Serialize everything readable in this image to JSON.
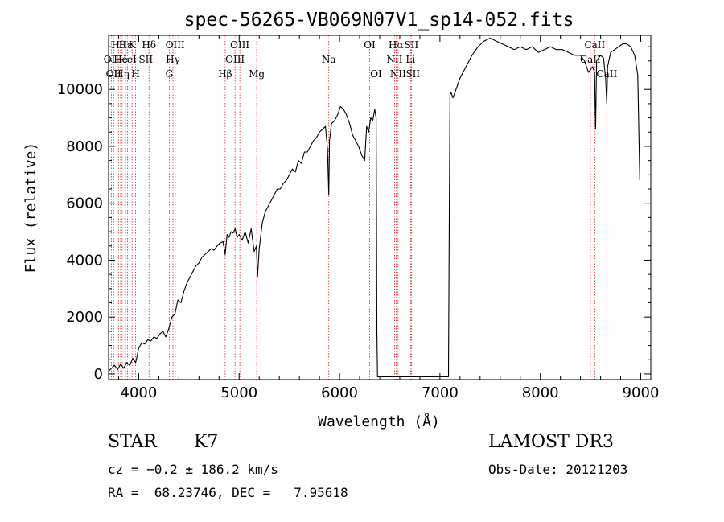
{
  "chart_data": {
    "type": "line",
    "title": "spec-56265-VB069N07V1_sp14-052.fits",
    "xlabel": "Wavelength (Å)",
    "ylabel": "Flux (relative)",
    "xlim": [
      3700,
      9100
    ],
    "ylim": [
      -200,
      11900
    ],
    "x_ticks": [
      4000,
      5000,
      6000,
      7000,
      8000,
      9000
    ],
    "y_ticks": [
      0,
      2000,
      4000,
      6000,
      8000,
      10000
    ],
    "series": [
      {
        "name": "flux",
        "x": [
          3700,
          3730,
          3760,
          3790,
          3820,
          3850,
          3880,
          3910,
          3940,
          3970,
          4000,
          4030,
          4060,
          4090,
          4120,
          4150,
          4180,
          4210,
          4240,
          4270,
          4300,
          4330,
          4360,
          4390,
          4420,
          4450,
          4480,
          4510,
          4540,
          4570,
          4600,
          4630,
          4660,
          4690,
          4720,
          4750,
          4780,
          4810,
          4840,
          4861,
          4880,
          4900,
          4920,
          4940,
          4960,
          4980,
          5000,
          5030,
          5060,
          5090,
          5120,
          5150,
          5172,
          5183,
          5200,
          5230,
          5260,
          5290,
          5320,
          5350,
          5380,
          5410,
          5440,
          5470,
          5500,
          5530,
          5560,
          5590,
          5620,
          5650,
          5680,
          5710,
          5740,
          5770,
          5800,
          5830,
          5860,
          5880,
          5893,
          5900,
          5920,
          5950,
          5980,
          6010,
          6040,
          6070,
          6100,
          6130,
          6160,
          6190,
          6220,
          6250,
          6270,
          6290,
          6310,
          6330,
          6350,
          6365,
          6372,
          6378,
          6385,
          6395,
          6500,
          6700,
          6900,
          7050,
          7085,
          7092,
          7100,
          7110,
          7130,
          7160,
          7200,
          7260,
          7320,
          7380,
          7440,
          7500,
          7560,
          7620,
          7680,
          7740,
          7800,
          7860,
          7920,
          7980,
          8040,
          8100,
          8160,
          8220,
          8280,
          8340,
          8400,
          8440,
          8480,
          8520,
          8540,
          8550,
          8560,
          8600,
          8630,
          8650,
          8662,
          8670,
          8700,
          8740,
          8780,
          8820,
          8860,
          8900,
          8940,
          8970,
          8990
        ],
        "values": [
          100,
          200,
          300,
          150,
          350,
          200,
          400,
          300,
          550,
          400,
          900,
          1100,
          1050,
          1200,
          1150,
          1300,
          1250,
          1400,
          1500,
          1300,
          1600,
          2000,
          2100,
          2600,
          2500,
          2900,
          3200,
          3400,
          3600,
          3800,
          3900,
          4100,
          4200,
          4300,
          4400,
          4350,
          4500,
          4600,
          4650,
          4200,
          4900,
          4800,
          5000,
          4950,
          5100,
          4800,
          4900,
          4700,
          5000,
          4600,
          5100,
          4300,
          4500,
          3400,
          4400,
          5300,
          5700,
          5900,
          6100,
          6300,
          6500,
          6500,
          6700,
          6800,
          7000,
          7200,
          7100,
          7500,
          7400,
          7800,
          7800,
          8000,
          8200,
          8300,
          8500,
          8600,
          8700,
          7900,
          6300,
          8200,
          8800,
          8900,
          9100,
          9400,
          9300,
          9100,
          8800,
          8400,
          8200,
          8000,
          7700,
          7500,
          8700,
          8500,
          9000,
          8900,
          9300,
          9000,
          1500,
          -100,
          -100,
          -100,
          -100,
          -100,
          -100,
          -100,
          -100,
          5000,
          9800,
          9900,
          9700,
          10000,
          10400,
          10800,
          11200,
          11500,
          11700,
          11800,
          11700,
          11600,
          11500,
          11400,
          11500,
          11400,
          11500,
          11300,
          11400,
          11500,
          11400,
          11400,
          11300,
          11200,
          11200,
          11000,
          10600,
          10800,
          10600,
          8600,
          11000,
          11200,
          11100,
          10400,
          9500,
          10800,
          11300,
          11400,
          11500,
          11600,
          11600,
          11500,
          11200,
          10500,
          6800
        ]
      }
    ],
    "line_markers": [
      {
        "x": 3727,
        "label": "OII",
        "row": 1
      },
      {
        "x": 3750,
        "label": "OII",
        "row": 2
      },
      {
        "x": 3798,
        "label": "Hθ",
        "row": 0
      },
      {
        "x": 3820,
        "label": "He",
        "row": 1
      },
      {
        "x": 3835,
        "label": "Hη",
        "row": 2
      },
      {
        "x": 3868,
        "label": "Hε",
        "row": 0
      },
      {
        "x": 3889,
        "label": "HeI",
        "row": 1
      },
      {
        "x": 3934,
        "label": "K",
        "row": 0
      },
      {
        "x": 3969,
        "label": "H",
        "row": 2
      },
      {
        "x": 4071,
        "label": "SII",
        "row": 1
      },
      {
        "x": 4102,
        "label": "Hδ",
        "row": 0
      },
      {
        "x": 4304,
        "label": "G",
        "row": 2
      },
      {
        "x": 4341,
        "label": "Hγ",
        "row": 1
      },
      {
        "x": 4363,
        "label": "OIII",
        "row": 0
      },
      {
        "x": 4861,
        "label": "Hβ",
        "row": 2
      },
      {
        "x": 4959,
        "label": "OIII",
        "row": 1
      },
      {
        "x": 5007,
        "label": "OIII",
        "row": 0
      },
      {
        "x": 5175,
        "label": "Mg",
        "row": 2
      },
      {
        "x": 5893,
        "label": "Na",
        "row": 1
      },
      {
        "x": 6300,
        "label": "OI",
        "row": 0
      },
      {
        "x": 6364,
        "label": "OI",
        "row": 2
      },
      {
        "x": 6548,
        "label": "NII",
        "row": 1
      },
      {
        "x": 6563,
        "label": "Hα",
        "row": 0
      },
      {
        "x": 6583,
        "label": "NII",
        "row": 2
      },
      {
        "x": 6707,
        "label": "Li",
        "row": 1
      },
      {
        "x": 6716,
        "label": "SII",
        "row": 0
      },
      {
        "x": 6731,
        "label": "SII",
        "row": 2
      },
      {
        "x": 8498,
        "label": "CaII",
        "row": 1
      },
      {
        "x": 8542,
        "label": "CaII",
        "row": 0
      },
      {
        "x": 8662,
        "label": "CaII",
        "row": 2
      }
    ]
  },
  "info": {
    "class": "STAR",
    "subclass": "K7",
    "survey": "LAMOST DR3",
    "redshift": "cz = −0.2 ± 186.2 km/s",
    "obs_date": "Obs-Date: 20121203",
    "coords": "RA =  68.23746, DEC =   7.95618"
  }
}
